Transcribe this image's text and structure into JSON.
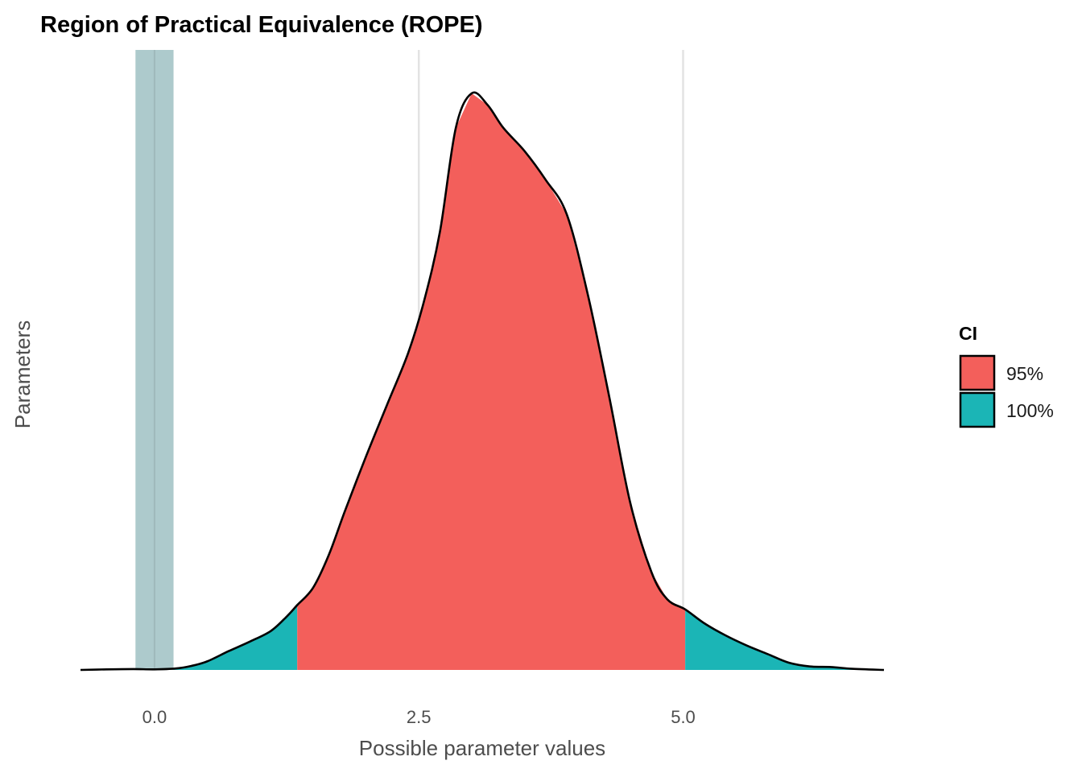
{
  "chart_data": {
    "type": "area",
    "title": "Region of Practical Equivalence (ROPE)",
    "xlabel": "Possible parameter values",
    "ylabel": "Parameters",
    "xlim": [
      -0.7,
      6.9
    ],
    "x_ticks": [
      0.0,
      2.5,
      5.0
    ],
    "x_tick_labels": [
      "0.0",
      "2.5",
      "5.0"
    ],
    "grid": {
      "vertical_major": true,
      "horizontal": false
    },
    "rope": {
      "low": -0.18,
      "high": 0.18,
      "center_line": 0.0,
      "color": "#a9c7c9"
    },
    "ci_95": {
      "low": 1.35,
      "high": 5.02
    },
    "density": {
      "x": [
        -0.7,
        -0.45,
        -0.2,
        0.0,
        0.2,
        0.35,
        0.5,
        0.7,
        0.9,
        1.1,
        1.25,
        1.35,
        1.5,
        1.65,
        1.8,
        2.0,
        2.2,
        2.4,
        2.55,
        2.7,
        2.85,
        3.0,
        3.15,
        3.3,
        3.5,
        3.7,
        3.9,
        4.1,
        4.3,
        4.5,
        4.7,
        4.85,
        5.02,
        5.2,
        5.4,
        5.6,
        5.8,
        6.0,
        6.2,
        6.4,
        6.6,
        6.9
      ],
      "y": [
        0.0,
        0.002,
        0.003,
        0.002,
        0.005,
        0.014,
        0.03,
        0.065,
        0.098,
        0.135,
        0.185,
        0.225,
        0.285,
        0.4,
        0.55,
        0.74,
        0.92,
        1.1,
        1.28,
        1.52,
        1.88,
        2.0,
        1.96,
        1.88,
        1.8,
        1.7,
        1.58,
        1.3,
        0.95,
        0.58,
        0.34,
        0.245,
        0.21,
        0.162,
        0.12,
        0.085,
        0.055,
        0.025,
        0.012,
        0.01,
        0.004,
        0.0
      ]
    },
    "ylim": [
      0,
      2.05
    ],
    "legend": {
      "title": "CI",
      "placement": "right",
      "entries": [
        {
          "label": "95%",
          "color": "#f35f5b"
        },
        {
          "label": "100%",
          "color": "#1bb5b6"
        }
      ]
    }
  }
}
